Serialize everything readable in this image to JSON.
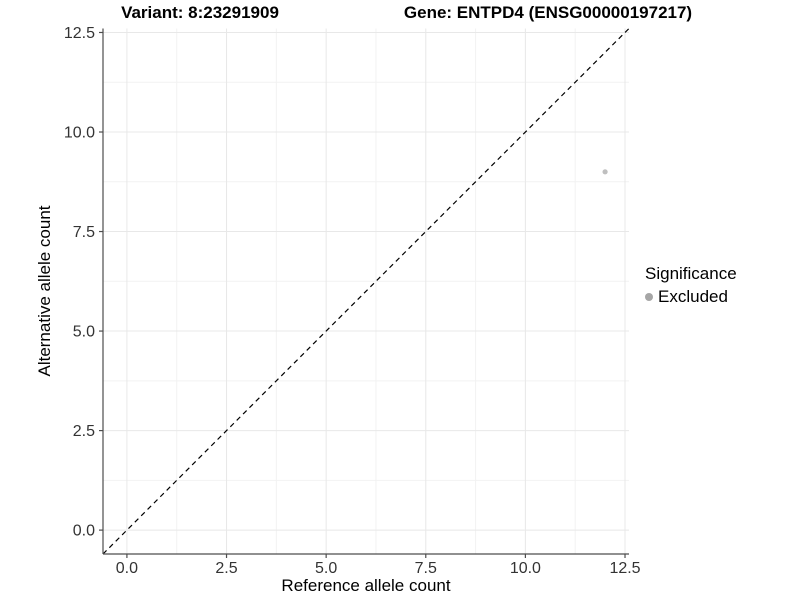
{
  "titles": {
    "variant": "Variant: 8:23291909",
    "gene": "Gene: ENTPD4 (ENSG00000197217)"
  },
  "chart_data": {
    "type": "scatter",
    "title_left": "Variant: 8:23291909",
    "title_right": "Gene: ENTPD4 (ENSG00000197217)",
    "xlabel": "Reference allele count",
    "ylabel": "Alternative allele count",
    "xlim": [
      -0.6,
      12.6
    ],
    "ylim": [
      -0.6,
      12.6
    ],
    "x_ticks": [
      0,
      2.5,
      5,
      7.5,
      10,
      12.5
    ],
    "x_tick_labels": [
      "0.0",
      "2.5",
      "5.0",
      "7.5",
      "10.0",
      "12.5"
    ],
    "y_ticks": [
      0,
      2.5,
      5,
      7.5,
      10,
      12.5
    ],
    "y_tick_labels": [
      "0.0",
      "2.5",
      "5.0",
      "7.5",
      "10.0",
      "12.5"
    ],
    "minor_ticks": [
      1.25,
      3.75,
      6.25,
      8.75,
      11.25
    ],
    "grid": "on",
    "reference_line": {
      "type": "identity",
      "equation": "y = x",
      "style": "dashed",
      "color": "#000000"
    },
    "series": [
      {
        "name": "Excluded",
        "color": "#bfbfbf",
        "points": [
          {
            "x": 12,
            "y": 9
          }
        ]
      }
    ],
    "legend": {
      "position": "right",
      "title": "Significance",
      "entries": [
        {
          "label": "Excluded",
          "color": "#a6a6a6"
        }
      ]
    },
    "colors": {
      "axis_line": "#4d4d4d",
      "tick_label": "#333333",
      "grid_major": "#e8e8e8",
      "grid_minor": "#f2f2f2",
      "background": "#ffffff"
    }
  }
}
